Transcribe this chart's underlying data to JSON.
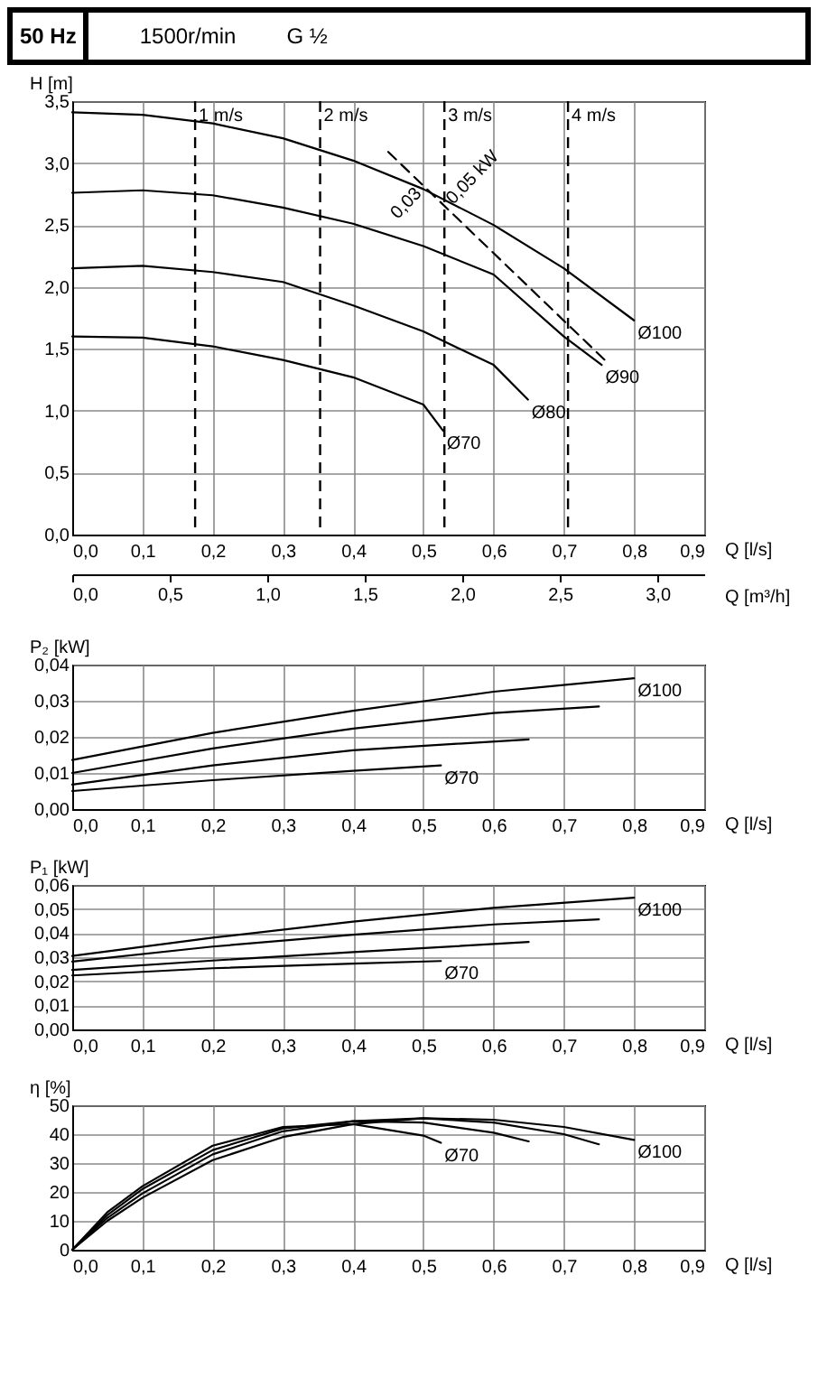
{
  "chart_data": [
    {
      "type": "line",
      "title": "50 Hz",
      "annotations": [
        "1500r/min",
        "G ½",
        {
          "text": "0,03",
          "x": 0.5,
          "y": 2.82
        },
        {
          "text": "0,05 kW",
          "x": 0.53,
          "y": 2.65
        }
      ],
      "xlabel": "Q [l/s]",
      "ylabel": "H [m]",
      "x2label": "Q [m³/h]",
      "xlim": [
        0,
        0.9
      ],
      "xticks": [
        {
          "value": 0,
          "label": "0,0"
        },
        {
          "value": 0.1,
          "label": "0,1"
        },
        {
          "value": 0.2,
          "label": "0,2"
        },
        {
          "value": 0.3,
          "label": "0,3"
        },
        {
          "value": 0.4,
          "label": "0,4"
        },
        {
          "value": 0.5,
          "label": "0,5"
        },
        {
          "value": 0.6,
          "label": "0,6"
        },
        {
          "value": 0.7,
          "label": "0,7"
        },
        {
          "value": 0.8,
          "label": "0,8"
        },
        {
          "value": 0.9,
          "label": "0,9"
        }
      ],
      "x2lim": [
        0,
        3.24
      ],
      "x2ticks": [
        {
          "value": 0,
          "label": "0,0"
        },
        {
          "value": 0.5,
          "label": "0,5"
        },
        {
          "value": 1,
          "label": "1,0"
        },
        {
          "value": 1.5,
          "label": "1,5"
        },
        {
          "value": 2,
          "label": "2,0"
        },
        {
          "value": 2.5,
          "label": "2,5"
        },
        {
          "value": 3,
          "label": "3,0"
        }
      ],
      "ylim": [
        0,
        3.5
      ],
      "yticks": [
        {
          "value": 0,
          "label": "0,0"
        },
        {
          "value": 0.5,
          "label": "0,5"
        },
        {
          "value": 1,
          "label": "1,0"
        },
        {
          "value": 1.5,
          "label": "1,5"
        },
        {
          "value": 2,
          "label": "2,0"
        },
        {
          "value": 2.5,
          "label": "2,5"
        },
        {
          "value": 3,
          "label": "3,0"
        },
        {
          "value": 3.5,
          "label": "3,5"
        }
      ],
      "grid": true,
      "ref_lines": [
        {
          "axis": "x",
          "value": 0.175,
          "label": "1 m/s",
          "line_style": "dashed"
        },
        {
          "axis": "x",
          "value": 0.353,
          "label": "2 m/s",
          "line_style": "dashed"
        },
        {
          "axis": "x",
          "value": 0.53,
          "label": "3 m/s",
          "line_style": "dashed"
        },
        {
          "axis": "x",
          "value": 0.706,
          "label": "4 m/s",
          "line_style": "dashed"
        }
      ],
      "series": [
        {
          "name": "Ø100",
          "color": "#000000",
          "x": [
            0,
            0.1,
            0.2,
            0.3,
            0.4,
            0.5,
            0.6,
            0.7,
            0.8
          ],
          "values": [
            3.41,
            3.39,
            3.32,
            3.2,
            3.02,
            2.79,
            2.5,
            2.15,
            1.73
          ]
        },
        {
          "name": "Ø90",
          "color": "#000000",
          "x": [
            0,
            0.1,
            0.2,
            0.3,
            0.4,
            0.5,
            0.6,
            0.7,
            0.754
          ],
          "values": [
            2.76,
            2.78,
            2.74,
            2.64,
            2.51,
            2.33,
            2.1,
            1.6,
            1.37
          ]
        },
        {
          "name": "Ø80",
          "color": "#000000",
          "x": [
            0,
            0.1,
            0.2,
            0.3,
            0.4,
            0.5,
            0.6,
            0.649
          ],
          "values": [
            2.15,
            2.17,
            2.12,
            2.04,
            1.85,
            1.64,
            1.37,
            1.09
          ]
        },
        {
          "name": "Ø70",
          "color": "#000000",
          "x": [
            0,
            0.1,
            0.2,
            0.3,
            0.4,
            0.5,
            0.528
          ],
          "values": [
            1.6,
            1.59,
            1.52,
            1.41,
            1.27,
            1.05,
            0.84
          ]
        },
        {
          "type": "line",
          "color": "#000000",
          "line_style": "dashed",
          "x": [
            0.45,
            0.762
          ],
          "values": [
            3.09,
            1.39
          ]
        }
      ]
    },
    {
      "type": "line",
      "xlabel": "Q [l/s]",
      "ylabel": "P₂ [kW]",
      "xlim": [
        0,
        0.9
      ],
      "xticks": [
        {
          "value": 0,
          "label": "0,0"
        },
        {
          "value": 0.1,
          "label": "0,1"
        },
        {
          "value": 0.2,
          "label": "0,2"
        },
        {
          "value": 0.3,
          "label": "0,3"
        },
        {
          "value": 0.4,
          "label": "0,4"
        },
        {
          "value": 0.5,
          "label": "0,5"
        },
        {
          "value": 0.6,
          "label": "0,6"
        },
        {
          "value": 0.7,
          "label": "0,7"
        },
        {
          "value": 0.8,
          "label": "0,8"
        },
        {
          "value": 0.9,
          "label": "0,9"
        }
      ],
      "ylim": [
        0,
        0.04
      ],
      "yticks": [
        {
          "value": 0,
          "label": "0,00"
        },
        {
          "value": 0.01,
          "label": "0,01"
        },
        {
          "value": 0.02,
          "label": "0,02"
        },
        {
          "value": 0.03,
          "label": "0,03"
        },
        {
          "value": 0.04,
          "label": "0,04"
        }
      ],
      "grid": true,
      "series": [
        {
          "name": "Ø100",
          "color": "#000000",
          "x": [
            0,
            0.2,
            0.4,
            0.6,
            0.8
          ],
          "values": [
            0.0136,
            0.0211,
            0.0272,
            0.0325,
            0.0362
          ]
        },
        {
          "color": "#000000",
          "x": [
            0,
            0.2,
            0.4,
            0.6,
            0.75
          ],
          "values": [
            0.01,
            0.0168,
            0.0223,
            0.0266,
            0.0284
          ]
        },
        {
          "color": "#000000",
          "x": [
            0,
            0.2,
            0.4,
            0.65
          ],
          "values": [
            0.0068,
            0.0121,
            0.0163,
            0.0193
          ]
        },
        {
          "name": "Ø70",
          "color": "#000000",
          "x": [
            0,
            0.2,
            0.4,
            0.525
          ],
          "values": [
            0.005,
            0.008,
            0.0106,
            0.0121
          ]
        }
      ]
    },
    {
      "type": "line",
      "xlabel": "Q [l/s]",
      "ylabel": "P₁ [kW]",
      "xlim": [
        0,
        0.9
      ],
      "xticks": [
        {
          "value": 0,
          "label": "0,0"
        },
        {
          "value": 0.1,
          "label": "0,1"
        },
        {
          "value": 0.2,
          "label": "0,2"
        },
        {
          "value": 0.3,
          "label": "0,3"
        },
        {
          "value": 0.4,
          "label": "0,4"
        },
        {
          "value": 0.5,
          "label": "0,5"
        },
        {
          "value": 0.6,
          "label": "0,6"
        },
        {
          "value": 0.7,
          "label": "0,7"
        },
        {
          "value": 0.8,
          "label": "0,8"
        },
        {
          "value": 0.9,
          "label": "0,9"
        }
      ],
      "ylim": [
        0,
        0.06
      ],
      "yticks": [
        {
          "value": 0,
          "label": "0,00"
        },
        {
          "value": 0.01,
          "label": "0,01"
        },
        {
          "value": 0.02,
          "label": "0,02"
        },
        {
          "value": 0.03,
          "label": "0,03"
        },
        {
          "value": 0.04,
          "label": "0,04"
        },
        {
          "value": 0.05,
          "label": "0,05"
        },
        {
          "value": 0.06,
          "label": "0,06"
        }
      ],
      "grid": true,
      "series": [
        {
          "name": "Ø100",
          "color": "#000000",
          "x": [
            0,
            0.2,
            0.4,
            0.6,
            0.8
          ],
          "values": [
            0.0305,
            0.0381,
            0.0448,
            0.0505,
            0.0547
          ]
        },
        {
          "color": "#000000",
          "x": [
            0,
            0.2,
            0.4,
            0.6,
            0.75
          ],
          "values": [
            0.0282,
            0.0344,
            0.0393,
            0.0436,
            0.0457
          ]
        },
        {
          "color": "#000000",
          "x": [
            0,
            0.2,
            0.4,
            0.65
          ],
          "values": [
            0.0247,
            0.0286,
            0.0321,
            0.0363
          ]
        },
        {
          "name": "Ø70",
          "color": "#000000",
          "x": [
            0,
            0.2,
            0.4,
            0.525
          ],
          "values": [
            0.0224,
            0.0254,
            0.0273,
            0.0284
          ]
        }
      ]
    },
    {
      "type": "line",
      "xlabel": "Q [l/s]",
      "ylabel": "η [%]",
      "xlim": [
        0,
        0.9
      ],
      "xticks": [
        {
          "value": 0,
          "label": "0,0"
        },
        {
          "value": 0.1,
          "label": "0,1"
        },
        {
          "value": 0.2,
          "label": "0,2"
        },
        {
          "value": 0.3,
          "label": "0,3"
        },
        {
          "value": 0.4,
          "label": "0,4"
        },
        {
          "value": 0.5,
          "label": "0,5"
        },
        {
          "value": 0.6,
          "label": "0,6"
        },
        {
          "value": 0.7,
          "label": "0,7"
        },
        {
          "value": 0.8,
          "label": "0,8"
        },
        {
          "value": 0.9,
          "label": "0,9"
        }
      ],
      "ylim": [
        0,
        50
      ],
      "yticks": [
        0,
        10,
        20,
        30,
        40,
        50
      ],
      "grid": true,
      "series": [
        {
          "name": "Ø100",
          "color": "#000000",
          "x": [
            0,
            0.05,
            0.1,
            0.2,
            0.3,
            0.4,
            0.5,
            0.6,
            0.7,
            0.8
          ],
          "values": [
            0,
            10,
            18,
            31,
            39,
            43.5,
            45.5,
            45,
            42.5,
            38
          ]
        },
        {
          "color": "#000000",
          "x": [
            0,
            0.05,
            0.1,
            0.2,
            0.3,
            0.4,
            0.5,
            0.6,
            0.7,
            0.75
          ],
          "values": [
            0,
            11,
            19.5,
            33,
            41,
            44.5,
            45.5,
            44,
            40,
            36.5
          ]
        },
        {
          "color": "#000000",
          "x": [
            0,
            0.05,
            0.1,
            0.2,
            0.3,
            0.4,
            0.5,
            0.6,
            0.65
          ],
          "values": [
            0,
            12,
            21,
            34.5,
            42,
            44.5,
            44,
            40.5,
            37.5
          ]
        },
        {
          "name": "Ø70",
          "color": "#000000",
          "x": [
            0,
            0.05,
            0.1,
            0.2,
            0.3,
            0.4,
            0.5,
            0.525
          ],
          "values": [
            0,
            13,
            22,
            36,
            42.5,
            43.5,
            39.5,
            37
          ]
        }
      ]
    }
  ]
}
